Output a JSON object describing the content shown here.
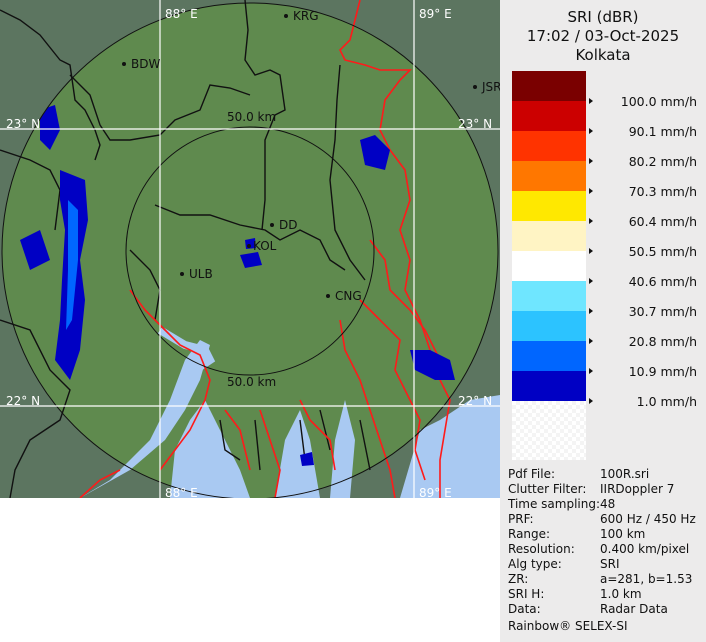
{
  "header": {
    "product": "SRI (dBR)",
    "datetime": "17:02 / 03-Oct-2025",
    "site": "Kolkata"
  },
  "map": {
    "grid_labels": {
      "lon_left": "88° E",
      "lon_right": "89° E",
      "lat_top": "23° N",
      "lat_bottom": "22° N"
    },
    "ring_labels": {
      "inner_top": "50.0 km",
      "inner_bottom": "50.0 km"
    },
    "cities": [
      {
        "name": "BDW"
      },
      {
        "name": "KRG"
      },
      {
        "name": "JSR"
      },
      {
        "name": "DD"
      },
      {
        "name": "KOL"
      },
      {
        "name": "ULB"
      },
      {
        "name": "CNG"
      }
    ],
    "colors": {
      "land": "#5f8a4e",
      "outside": "#5c7560",
      "water": "#a9c9f2",
      "border_intl": "#ff1a1a",
      "border_state": "#111111",
      "grid": "#ffffff"
    }
  },
  "legend": {
    "items": [
      {
        "label": "100.0 mm/h",
        "color": "#7a0000"
      },
      {
        "label": "90.1 mm/h",
        "color": "#cc0000"
      },
      {
        "label": "80.2 mm/h",
        "color": "#ff3300"
      },
      {
        "label": "70.3 mm/h",
        "color": "#ff7700"
      },
      {
        "label": "60.4 mm/h",
        "color": "#ffe800"
      },
      {
        "label": "50.5 mm/h",
        "color": "#fff4c4"
      },
      {
        "label": "40.6 mm/h",
        "color": "#ffffff"
      },
      {
        "label": "30.7 mm/h",
        "color": "#6fe6ff"
      },
      {
        "label": "20.8 mm/h",
        "color": "#2cc3ff"
      },
      {
        "label": "10.9 mm/h",
        "color": "#0066ff"
      },
      {
        "label": "1.0 mm/h",
        "color": "#0000c4"
      }
    ]
  },
  "metadata": [
    {
      "key": "Pdf File:",
      "value": "100R.sri"
    },
    {
      "key": "Clutter Filter:",
      "value": "IIRDoppler 7"
    },
    {
      "key": "Time sampling:",
      "value": "48"
    },
    {
      "key": "PRF:",
      "value": "600 Hz / 450 Hz"
    },
    {
      "key": "Range:",
      "value": "100 km"
    },
    {
      "key": "Resolution:",
      "value": "0.400 km/pixel"
    },
    {
      "key": "Alg type:",
      "value": "SRI"
    },
    {
      "key": "ZR:",
      "value": "a=281, b=1.53"
    },
    {
      "key": "SRI H:",
      "value": "1.0 km"
    },
    {
      "key": "Data:",
      "value": "Radar Data"
    }
  ],
  "footer": "Rainbow® SELEX-SI"
}
